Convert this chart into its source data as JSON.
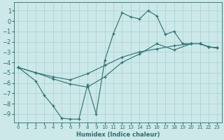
{
  "xlabel": "Humidex (Indice chaleur)",
  "bg_color": "#cce8e8",
  "grid_color": "#aad0d0",
  "line_color": "#2a7070",
  "xlim": [
    -0.5,
    23.5
  ],
  "ylim": [
    -9.8,
    1.8
  ],
  "yticks": [
    1,
    0,
    -1,
    -2,
    -3,
    -4,
    -5,
    -6,
    -7,
    -8,
    -9
  ],
  "xticks": [
    0,
    1,
    2,
    3,
    4,
    5,
    6,
    7,
    8,
    9,
    10,
    11,
    12,
    13,
    14,
    15,
    16,
    17,
    18,
    19,
    20,
    21,
    22,
    23
  ],
  "line1_x": [
    0,
    2,
    3,
    4,
    5,
    6,
    7,
    8,
    9,
    10,
    11,
    12,
    13,
    14,
    15,
    16,
    17,
    18,
    19,
    20,
    21,
    22,
    23
  ],
  "line1_y": [
    -4.5,
    -5.8,
    -7.2,
    -8.2,
    -9.4,
    -9.5,
    -9.5,
    -6.2,
    -9.0,
    -3.8,
    -1.2,
    0.8,
    0.4,
    0.2,
    1.0,
    0.5,
    -1.3,
    -1.0,
    -2.2,
    -2.2,
    -2.2,
    -2.5,
    -2.6
  ],
  "line2_x": [
    0,
    2,
    4,
    6,
    8,
    10,
    12,
    14,
    16,
    18,
    20,
    21,
    22,
    23
  ],
  "line2_y": [
    -4.5,
    -5.0,
    -5.4,
    -5.7,
    -5.1,
    -4.3,
    -3.5,
    -3.0,
    -2.7,
    -2.4,
    -2.2,
    -2.2,
    -2.5,
    -2.6
  ],
  "line3_x": [
    0,
    2,
    4,
    6,
    8,
    10,
    12,
    14,
    16,
    18,
    20,
    21,
    22,
    23
  ],
  "line3_y": [
    -4.5,
    -5.0,
    -5.6,
    -6.1,
    -6.4,
    -5.4,
    -4.0,
    -3.2,
    -2.2,
    -2.8,
    -2.2,
    -2.2,
    -2.5,
    -2.6
  ],
  "marker_x1": [
    0,
    2,
    3,
    4,
    5,
    6,
    7,
    8,
    9,
    10,
    11,
    12,
    13,
    14,
    15,
    16,
    17,
    18,
    19,
    20,
    21,
    22,
    23
  ],
  "marker_x23": [
    0,
    2,
    4,
    6,
    8,
    10,
    12,
    14,
    16,
    18,
    20,
    21,
    22,
    23
  ]
}
